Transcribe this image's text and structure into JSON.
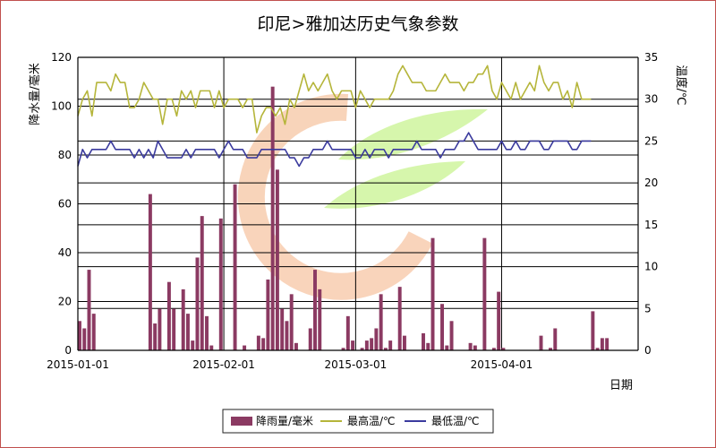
{
  "chart_data": {
    "type": "bar+line",
    "title": "印尼>雅加达历史气象参数",
    "xlabel": "日期",
    "ylabel_left": "降水量/毫米",
    "ylabel_right": "温度/℃",
    "ylim_left": [
      0,
      120
    ],
    "ylim_right": [
      0,
      35
    ],
    "yticks_left": [
      "0",
      "20",
      "40",
      "60",
      "80",
      "100",
      "120"
    ],
    "yticks_right": [
      "0",
      "5",
      "10",
      "15",
      "20",
      "25",
      "30",
      "35"
    ],
    "xlim": [
      "2015-01-01",
      "2015-04-30"
    ],
    "xticks": [
      "2015-01-01",
      "2015-02-01",
      "2015-03-01",
      "2015-04-01"
    ],
    "grid": true,
    "legend_position": "bottom",
    "colors": {
      "precip": "#8b3a62",
      "tmax": "#b5b53a",
      "tmin": "#3b3b9e",
      "frame": "#c0504d"
    },
    "series": [
      {
        "name": "降雨量/毫米",
        "type": "bar",
        "axis": "left",
        "points": [
          [
            "2015-01-01",
            12
          ],
          [
            "2015-01-02",
            9
          ],
          [
            "2015-01-03",
            33
          ],
          [
            "2015-01-04",
            15
          ],
          [
            "2015-01-16",
            64
          ],
          [
            "2015-01-17",
            11
          ],
          [
            "2015-01-18",
            17
          ],
          [
            "2015-01-20",
            28
          ],
          [
            "2015-01-21",
            17
          ],
          [
            "2015-01-23",
            25
          ],
          [
            "2015-01-24",
            15
          ],
          [
            "2015-01-25",
            4
          ],
          [
            "2015-01-26",
            38
          ],
          [
            "2015-01-27",
            55
          ],
          [
            "2015-01-28",
            14
          ],
          [
            "2015-01-29",
            2
          ],
          [
            "2015-01-31",
            54
          ],
          [
            "2015-02-03",
            68
          ],
          [
            "2015-02-05",
            2
          ],
          [
            "2015-02-08",
            6
          ],
          [
            "2015-02-09",
            5
          ],
          [
            "2015-02-10",
            29
          ],
          [
            "2015-02-11",
            108
          ],
          [
            "2015-02-12",
            74
          ],
          [
            "2015-02-13",
            17
          ],
          [
            "2015-02-14",
            12
          ],
          [
            "2015-02-15",
            23
          ],
          [
            "2015-02-16",
            3
          ],
          [
            "2015-02-19",
            9
          ],
          [
            "2015-02-20",
            33
          ],
          [
            "2015-02-21",
            25
          ],
          [
            "2015-02-26",
            1
          ],
          [
            "2015-02-27",
            14
          ],
          [
            "2015-02-28",
            4
          ],
          [
            "2015-03-02",
            1
          ],
          [
            "2015-03-03",
            4
          ],
          [
            "2015-03-04",
            5
          ],
          [
            "2015-03-05",
            9
          ],
          [
            "2015-03-06",
            23
          ],
          [
            "2015-03-07",
            1
          ],
          [
            "2015-03-08",
            4
          ],
          [
            "2015-03-10",
            26
          ],
          [
            "2015-03-11",
            6
          ],
          [
            "2015-03-15",
            7
          ],
          [
            "2015-03-16",
            3
          ],
          [
            "2015-03-17",
            46
          ],
          [
            "2015-03-19",
            19
          ],
          [
            "2015-03-20",
            2
          ],
          [
            "2015-03-21",
            12
          ],
          [
            "2015-03-25",
            3
          ],
          [
            "2015-03-26",
            2
          ],
          [
            "2015-03-28",
            46
          ],
          [
            "2015-03-30",
            1
          ],
          [
            "2015-03-31",
            24
          ],
          [
            "2015-04-01",
            1
          ],
          [
            "2015-04-09",
            6
          ],
          [
            "2015-04-11",
            1
          ],
          [
            "2015-04-12",
            9
          ],
          [
            "2015-04-20",
            16
          ],
          [
            "2015-04-21",
            1
          ],
          [
            "2015-04-22",
            5
          ],
          [
            "2015-04-23",
            5
          ]
        ]
      },
      {
        "name": "最高温/℃",
        "type": "line",
        "axis": "right",
        "start": "2015-01-01",
        "values": [
          28,
          30,
          31,
          28,
          32,
          32,
          32,
          31,
          33,
          32,
          32,
          29,
          29,
          30,
          32,
          31,
          30,
          30,
          27,
          30,
          30,
          28,
          31,
          30,
          31,
          29,
          31,
          31,
          31,
          29,
          31,
          29,
          30,
          30,
          30,
          29,
          30,
          30,
          26,
          28,
          29,
          29,
          28,
          29,
          27,
          30,
          29,
          31,
          33,
          31,
          32,
          31,
          32,
          33,
          31,
          30,
          31,
          31,
          31,
          29,
          31,
          30,
          29,
          30,
          30,
          30,
          30,
          31,
          33,
          34,
          33,
          32,
          32,
          32,
          31,
          31,
          31,
          32,
          33,
          32,
          32,
          32,
          31,
          32,
          32,
          33,
          33,
          34,
          31,
          30,
          32,
          31,
          30,
          32,
          30,
          31,
          32,
          31,
          34,
          32,
          31,
          32,
          32,
          30,
          31,
          29,
          32,
          30,
          30,
          30
        ]
      },
      {
        "name": "最低温/℃",
        "type": "line",
        "axis": "right",
        "start": "2015-01-01",
        "values": [
          22,
          24,
          23,
          24,
          24,
          24,
          24,
          25,
          24,
          24,
          24,
          24,
          23,
          24,
          23,
          24,
          23,
          25,
          24,
          23,
          23,
          23,
          23,
          24,
          23,
          24,
          24,
          24,
          24,
          24,
          23,
          24,
          25,
          24,
          24,
          24,
          23,
          23,
          23,
          24,
          24,
          24,
          24,
          24,
          24,
          23,
          23,
          22,
          23,
          23,
          24,
          24,
          24,
          25,
          24,
          24,
          24,
          24,
          24,
          23,
          23,
          24,
          23,
          24,
          24,
          24,
          23,
          24,
          24,
          24,
          24,
          24,
          25,
          24,
          24,
          24,
          24,
          23,
          24,
          24,
          24,
          25,
          25,
          26,
          25,
          24,
          24,
          24,
          24,
          24,
          25,
          24,
          24,
          25,
          24,
          24,
          25,
          25,
          25,
          24,
          24,
          25,
          25,
          25,
          25,
          24,
          24,
          25,
          25,
          25
        ]
      }
    ]
  }
}
